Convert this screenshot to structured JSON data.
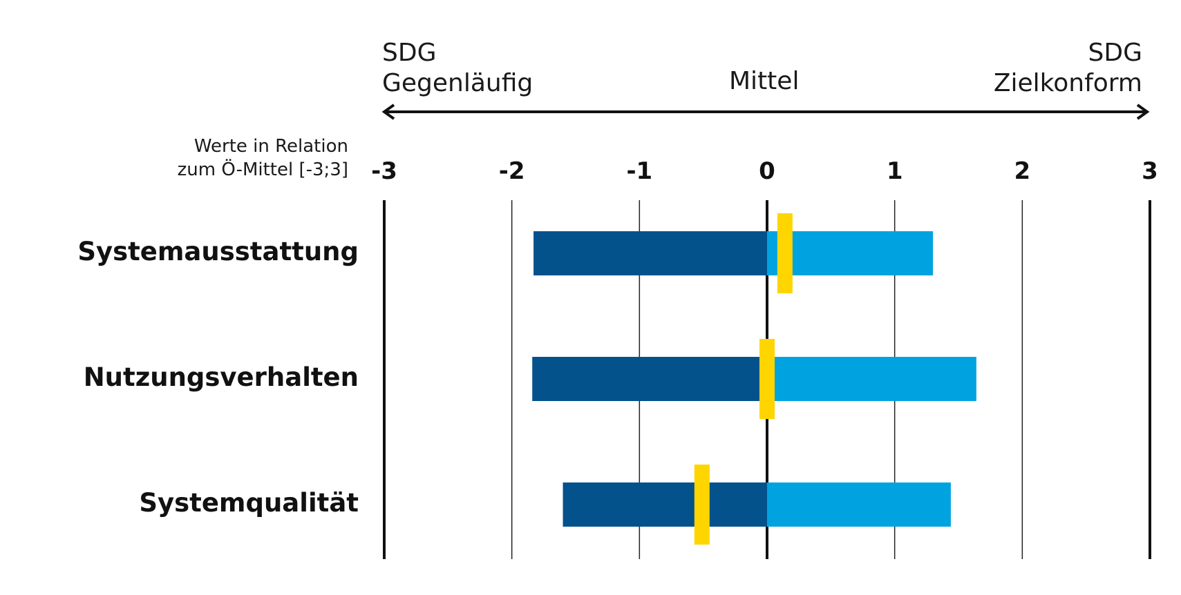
{
  "header": {
    "left_line1": "SDG",
    "left_line2": "Gegenläufig",
    "center": "Mittel",
    "right_line1": "SDG",
    "right_line2": "Zielkonform"
  },
  "axis_note_line1": "Werte in Relation",
  "axis_note_line2": "zum Ö-Mittel [-3;3]",
  "colors": {
    "negative": "#03528c",
    "positive": "#00a3e0",
    "marker": "#ffd500",
    "axis": "#111111",
    "grid": "#222222"
  },
  "chart_data": {
    "type": "bar",
    "orientation": "horizontal",
    "xlim": [
      -3,
      3
    ],
    "ticks": [
      "-3",
      "-2",
      "-1",
      "0",
      "1",
      "2",
      "3"
    ],
    "tick_values": [
      -3,
      -2,
      -1,
      0,
      1,
      2,
      3
    ],
    "categories": [
      "Systemausstattung",
      "Nutzungsverhalten",
      "Systemqualität"
    ],
    "series": [
      {
        "values": [
          -1.83,
          -1.84,
          -1.6
        ]
      },
      {
        "values": [
          1.3,
          1.64,
          1.44
        ]
      }
    ],
    "markers": [
      0.14,
      0.0,
      -0.51
    ]
  }
}
